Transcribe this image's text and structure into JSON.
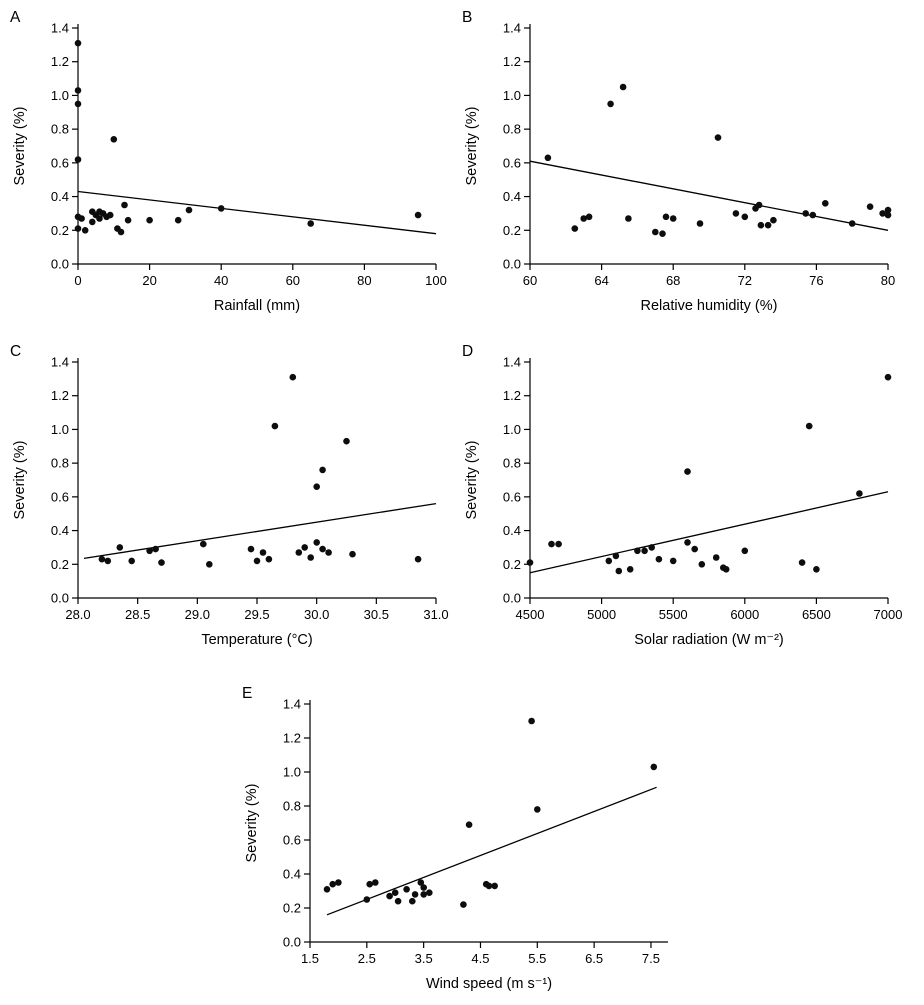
{
  "figure": {
    "shared_y_label": "Severity (%)",
    "point_color": "#0d0d0d",
    "line_color": "#000000",
    "background": "#ffffff"
  },
  "chart_data": [
    {
      "type": "scatter",
      "panel": "A",
      "xlabel": "Rainfall (mm)",
      "ylabel": "Severity (%)",
      "xlim": [
        0,
        100
      ],
      "ylim": [
        0,
        1.4
      ],
      "x_tick_values": [
        0,
        20,
        40,
        60,
        80,
        100
      ],
      "x_tick_labels": [
        "0",
        "20",
        "40",
        "60",
        "80",
        "100"
      ],
      "y_tick_values": [
        0,
        0.2,
        0.4,
        0.6,
        0.8,
        1.0,
        1.2,
        1.4
      ],
      "y_tick_labels": [
        "0.0",
        "0.2",
        "0.4",
        "0.6",
        "0.8",
        "1.0",
        "1.2",
        "1.4"
      ],
      "points": [
        [
          0,
          1.31
        ],
        [
          0,
          1.03
        ],
        [
          0,
          0.95
        ],
        [
          0,
          0.62
        ],
        [
          0,
          0.28
        ],
        [
          0,
          0.21
        ],
        [
          1,
          0.27
        ],
        [
          2,
          0.2
        ],
        [
          4,
          0.25
        ],
        [
          4,
          0.31
        ],
        [
          5,
          0.29
        ],
        [
          6,
          0.31
        ],
        [
          6,
          0.27
        ],
        [
          7,
          0.3
        ],
        [
          8,
          0.28
        ],
        [
          9,
          0.29
        ],
        [
          10,
          0.74
        ],
        [
          11,
          0.21
        ],
        [
          12,
          0.19
        ],
        [
          13,
          0.35
        ],
        [
          14,
          0.26
        ],
        [
          20,
          0.26
        ],
        [
          28,
          0.26
        ],
        [
          31,
          0.32
        ],
        [
          40,
          0.33
        ],
        [
          65,
          0.24
        ],
        [
          95,
          0.29
        ]
      ],
      "trendline": {
        "x": [
          0,
          100
        ],
        "y": [
          0.43,
          0.18
        ]
      }
    },
    {
      "type": "scatter",
      "panel": "B",
      "xlabel": "Relative humidity (%)",
      "ylabel": "Severity (%)",
      "xlim": [
        60,
        80
      ],
      "ylim": [
        0,
        1.4
      ],
      "x_tick_values": [
        60,
        64,
        68,
        72,
        76,
        80
      ],
      "x_tick_labels": [
        "60",
        "64",
        "68",
        "72",
        "76",
        "80"
      ],
      "y_tick_values": [
        0,
        0.2,
        0.4,
        0.6,
        0.8,
        1.0,
        1.2,
        1.4
      ],
      "y_tick_labels": [
        "0.0",
        "0.2",
        "0.4",
        "0.6",
        "0.8",
        "1.0",
        "1.2",
        "1.4"
      ],
      "points": [
        [
          61,
          0.63
        ],
        [
          62.5,
          0.21
        ],
        [
          63,
          0.27
        ],
        [
          63.3,
          0.28
        ],
        [
          64.5,
          0.95
        ],
        [
          65.2,
          1.05
        ],
        [
          65.5,
          0.27
        ],
        [
          67,
          0.19
        ],
        [
          67.4,
          0.18
        ],
        [
          67.6,
          0.28
        ],
        [
          68,
          0.27
        ],
        [
          69.5,
          0.24
        ],
        [
          70.5,
          0.75
        ],
        [
          71.5,
          0.3
        ],
        [
          72,
          0.28
        ],
        [
          72.6,
          0.33
        ],
        [
          72.8,
          0.35
        ],
        [
          72.9,
          0.23
        ],
        [
          73.3,
          0.23
        ],
        [
          73.6,
          0.26
        ],
        [
          75.4,
          0.3
        ],
        [
          75.8,
          0.29
        ],
        [
          76.5,
          0.36
        ],
        [
          78,
          0.24
        ],
        [
          79,
          0.34
        ],
        [
          79.7,
          0.3
        ],
        [
          80,
          0.32
        ],
        [
          80,
          0.29
        ]
      ],
      "trendline": {
        "x": [
          60,
          80
        ],
        "y": [
          0.61,
          0.2
        ]
      }
    },
    {
      "type": "scatter",
      "panel": "C",
      "xlabel": "Temperature (°C)",
      "ylabel": "Severity (%)",
      "xlim": [
        28.0,
        31.0
      ],
      "ylim": [
        0,
        1.4
      ],
      "x_tick_values": [
        28.0,
        28.5,
        29.0,
        29.5,
        30.0,
        30.5,
        31.0
      ],
      "x_tick_labels": [
        "28.0",
        "28.5",
        "29.0",
        "29.5",
        "30.0",
        "30.5",
        "31.0"
      ],
      "y_tick_values": [
        0,
        0.2,
        0.4,
        0.6,
        0.8,
        1.0,
        1.2,
        1.4
      ],
      "y_tick_labels": [
        "0.0",
        "0.2",
        "0.4",
        "0.6",
        "0.8",
        "1.0",
        "1.2",
        "1.4"
      ],
      "points": [
        [
          28.2,
          0.23
        ],
        [
          28.25,
          0.22
        ],
        [
          28.35,
          0.3
        ],
        [
          28.45,
          0.22
        ],
        [
          28.6,
          0.28
        ],
        [
          28.65,
          0.29
        ],
        [
          28.7,
          0.21
        ],
        [
          29.05,
          0.32
        ],
        [
          29.1,
          0.2
        ],
        [
          29.45,
          0.29
        ],
        [
          29.5,
          0.22
        ],
        [
          29.55,
          0.27
        ],
        [
          29.6,
          0.23
        ],
        [
          29.65,
          1.02
        ],
        [
          29.8,
          1.31
        ],
        [
          29.85,
          0.27
        ],
        [
          29.9,
          0.3
        ],
        [
          29.95,
          0.24
        ],
        [
          30.0,
          0.66
        ],
        [
          30.0,
          0.33
        ],
        [
          30.05,
          0.76
        ],
        [
          30.05,
          0.29
        ],
        [
          30.1,
          0.27
        ],
        [
          30.25,
          0.93
        ],
        [
          30.3,
          0.26
        ],
        [
          30.85,
          0.23
        ]
      ],
      "trendline": {
        "x": [
          28.05,
          31.0
        ],
        "y": [
          0.235,
          0.56
        ]
      }
    },
    {
      "type": "scatter",
      "panel": "D",
      "xlabel": "Solar radiation (W m⁻²)",
      "ylabel": "Severity (%)",
      "xlim": [
        4500,
        7000
      ],
      "ylim": [
        0,
        1.4
      ],
      "x_tick_values": [
        4500,
        5000,
        5500,
        6000,
        6500,
        7000
      ],
      "x_tick_labels": [
        "4500",
        "5000",
        "5500",
        "6000",
        "6500",
        "7000"
      ],
      "y_tick_values": [
        0,
        0.2,
        0.4,
        0.6,
        0.8,
        1.0,
        1.2,
        1.4
      ],
      "y_tick_labels": [
        "0.0",
        "0.2",
        "0.4",
        "0.6",
        "0.8",
        "1.0",
        "1.2",
        "1.4"
      ],
      "points": [
        [
          4500,
          0.21
        ],
        [
          4650,
          0.32
        ],
        [
          4700,
          0.32
        ],
        [
          5050,
          0.22
        ],
        [
          5100,
          0.25
        ],
        [
          5120,
          0.16
        ],
        [
          5200,
          0.17
        ],
        [
          5250,
          0.28
        ],
        [
          5300,
          0.28
        ],
        [
          5350,
          0.3
        ],
        [
          5400,
          0.23
        ],
        [
          5500,
          0.22
        ],
        [
          5600,
          0.75
        ],
        [
          5600,
          0.33
        ],
        [
          5650,
          0.29
        ],
        [
          5700,
          0.2
        ],
        [
          5800,
          0.24
        ],
        [
          5850,
          0.18
        ],
        [
          5870,
          0.17
        ],
        [
          6000,
          0.28
        ],
        [
          6400,
          0.21
        ],
        [
          6450,
          1.02
        ],
        [
          6500,
          0.17
        ],
        [
          6800,
          0.62
        ],
        [
          7000,
          1.31
        ]
      ],
      "trendline": {
        "x": [
          4500,
          7000
        ],
        "y": [
          0.15,
          0.63
        ]
      }
    },
    {
      "type": "scatter",
      "panel": "E",
      "xlabel": "Wind speed (m s⁻¹)",
      "ylabel": "Severity (%)",
      "xlim": [
        1.5,
        7.8
      ],
      "ylim": [
        0,
        1.4
      ],
      "x_tick_values": [
        1.5,
        2.5,
        3.5,
        4.5,
        5.5,
        6.5,
        7.5
      ],
      "x_tick_labels": [
        "1.5",
        "2.5",
        "3.5",
        "4.5",
        "5.5",
        "6.5",
        "7.5"
      ],
      "y_tick_values": [
        0,
        0.2,
        0.4,
        0.6,
        0.8,
        1.0,
        1.2,
        1.4
      ],
      "y_tick_labels": [
        "0.0",
        "0.2",
        "0.4",
        "0.6",
        "0.8",
        "1.0",
        "1.2",
        "1.4"
      ],
      "points": [
        [
          1.8,
          0.31
        ],
        [
          1.9,
          0.34
        ],
        [
          2.0,
          0.35
        ],
        [
          2.5,
          0.25
        ],
        [
          2.55,
          0.34
        ],
        [
          2.65,
          0.35
        ],
        [
          2.9,
          0.27
        ],
        [
          3.0,
          0.29
        ],
        [
          3.05,
          0.24
        ],
        [
          3.2,
          0.31
        ],
        [
          3.3,
          0.24
        ],
        [
          3.35,
          0.28
        ],
        [
          3.45,
          0.35
        ],
        [
          3.5,
          0.32
        ],
        [
          3.5,
          0.28
        ],
        [
          3.6,
          0.29
        ],
        [
          4.2,
          0.22
        ],
        [
          4.3,
          0.69
        ],
        [
          4.6,
          0.34
        ],
        [
          4.65,
          0.33
        ],
        [
          4.75,
          0.33
        ],
        [
          5.4,
          1.3
        ],
        [
          5.5,
          0.78
        ],
        [
          7.55,
          1.03
        ]
      ],
      "trendline": {
        "x": [
          1.8,
          7.6
        ],
        "y": [
          0.16,
          0.91
        ]
      }
    }
  ]
}
